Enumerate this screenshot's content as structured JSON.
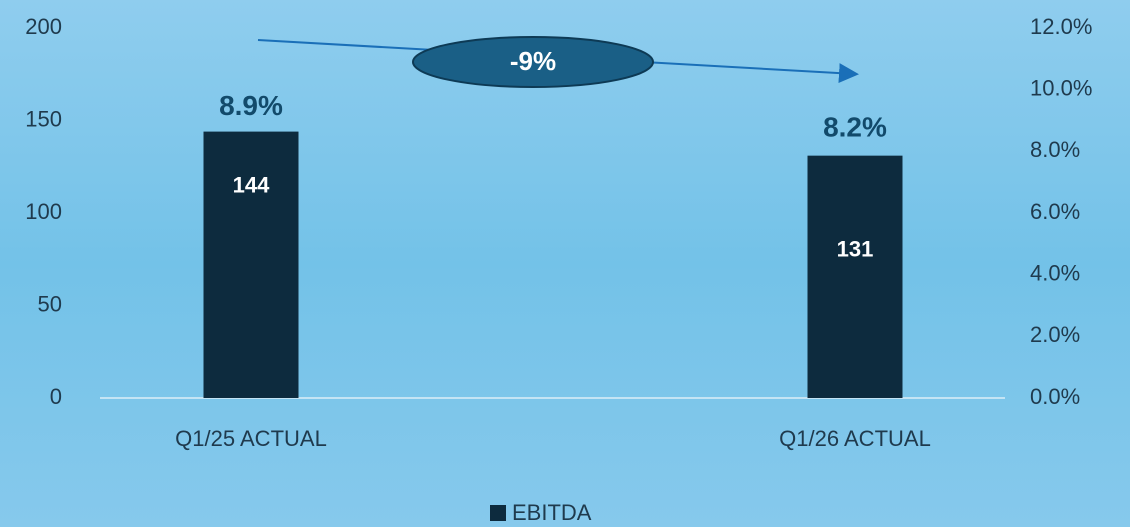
{
  "chart_data": {
    "type": "bar",
    "categories": [
      "Q1/25 ACTUAL",
      "Q1/26 ACTUAL"
    ],
    "series": [
      {
        "name": "EBITDA",
        "color": "#0d2b3e",
        "values": [
          144,
          131
        ]
      },
      {
        "axis": "y2",
        "color": "#124a6b",
        "values": [
          8.9,
          8.2
        ],
        "value_labels": [
          "8.9%",
          "8.2%"
        ]
      }
    ],
    "ylim": [
      0,
      200
    ],
    "yticks": [
      0,
      50,
      100,
      150,
      200
    ],
    "y2lim": [
      0,
      12
    ],
    "y2ticks": [
      {
        "value": 0,
        "label": "0.0%"
      },
      {
        "value": 2,
        "label": "2.0%"
      },
      {
        "value": 4,
        "label": "4.0%"
      },
      {
        "value": 6,
        "label": "6.0%"
      },
      {
        "value": 8,
        "label": "8.0%"
      },
      {
        "value": 10,
        "label": "10.0%"
      },
      {
        "value": 12,
        "label": "12.0%"
      }
    ],
    "annotation": "-9%",
    "legend": "bottom"
  }
}
